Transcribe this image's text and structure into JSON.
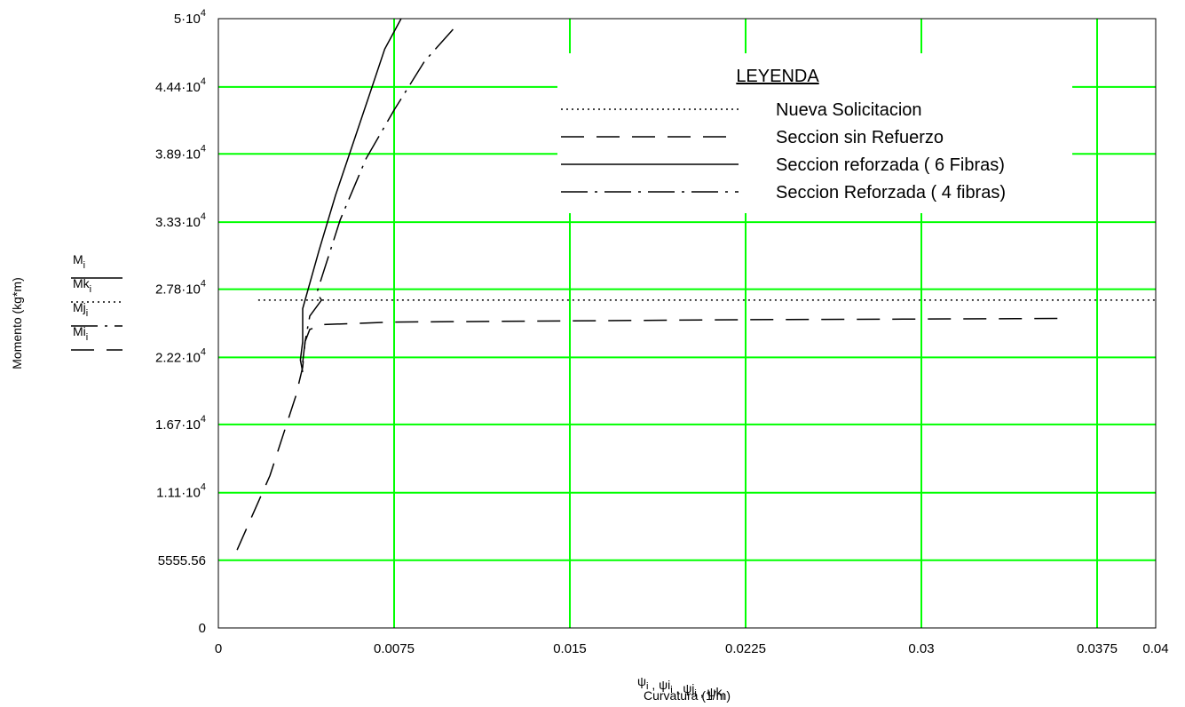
{
  "chart_data": {
    "type": "line",
    "xlim": [
      0,
      0.04
    ],
    "ylim": [
      0,
      50000
    ],
    "grid": true,
    "grid_color": "#00ff00",
    "x_ticks": [
      0,
      0.0075,
      0.015,
      0.0225,
      0.03,
      0.0375,
      0.04
    ],
    "x_tick_labels": [
      "0",
      "0.0075",
      "0.015",
      "0.0225",
      "0.03",
      "0.0375",
      "0.04"
    ],
    "y_ticks": [
      {
        "value": 0,
        "mant": "0",
        "exp": ""
      },
      {
        "value": 5555.56,
        "mant": "5555.56",
        "exp": ""
      },
      {
        "value": 11100,
        "mant": "1.11·10",
        "exp": "4"
      },
      {
        "value": 16700,
        "mant": "1.67·10",
        "exp": "4"
      },
      {
        "value": 22200,
        "mant": "2.22·10",
        "exp": "4"
      },
      {
        "value": 27800,
        "mant": "2.78·10",
        "exp": "4"
      },
      {
        "value": 33300,
        "mant": "3.33·10",
        "exp": "4"
      },
      {
        "value": 38900,
        "mant": "3.89·10",
        "exp": "4"
      },
      {
        "value": 44400,
        "mant": "4.44·10",
        "exp": "4"
      },
      {
        "value": 50000,
        "mant": "5·10",
        "exp": "4"
      }
    ],
    "ylabel": "Momento (kg*m)",
    "xlabel_vars": [
      {
        "base": "ψ",
        "sub": "i"
      },
      {
        "base": "ψi",
        "sub": "i"
      },
      {
        "base": "ψj",
        "sub": "i"
      },
      {
        "base": "ψk",
        "sub": "i"
      }
    ],
    "xlabel": "Curvatura (1/m)",
    "series": [
      {
        "name": "Nueva Solicitacion",
        "var": {
          "base": "Mk",
          "sub": "i"
        },
        "dash": "dotted",
        "x": [
          0.0017,
          0.04
        ],
        "y": [
          26900,
          26900
        ]
      },
      {
        "name": "Seccion sin Refuerzo",
        "var": {
          "base": "Mi",
          "sub": "i"
        },
        "dash": "dashed",
        "x": [
          0.0008,
          0.0022,
          0.0033,
          0.0036,
          0.0037,
          0.0039,
          0.0045,
          0.0075,
          0.015,
          0.0225,
          0.03,
          0.0363
        ],
        "y": [
          6400,
          12500,
          19000,
          21400,
          23500,
          24500,
          24900,
          25100,
          25200,
          25300,
          25350,
          25400
        ]
      },
      {
        "name": "Seccion reforzada ( 6 Fibras)",
        "var": {
          "base": "M",
          "sub": "i"
        },
        "dash": "solid",
        "x": [
          0.0036,
          0.0035,
          0.0036,
          0.0036,
          0.0043,
          0.005,
          0.0057,
          0.0064,
          0.0071,
          0.0078
        ],
        "y": [
          21000,
          22000,
          23500,
          26200,
          31000,
          35500,
          39500,
          43500,
          47500,
          50000
        ]
      },
      {
        "name": "Seccion Reforzada ( 4 fibras)",
        "var": {
          "base": "Mj",
          "sub": "i"
        },
        "dash": "dashdot",
        "x": [
          0.0036,
          0.0037,
          0.0039,
          0.0044,
          0.0042,
          0.0052,
          0.0063,
          0.0075,
          0.0088,
          0.0101
        ],
        "y": [
          21800,
          23500,
          25600,
          26900,
          27500,
          33500,
          38500,
          42500,
          46500,
          49300
        ]
      }
    ],
    "legend": {
      "title": "LEYENDA",
      "placement": "upper-right"
    }
  }
}
